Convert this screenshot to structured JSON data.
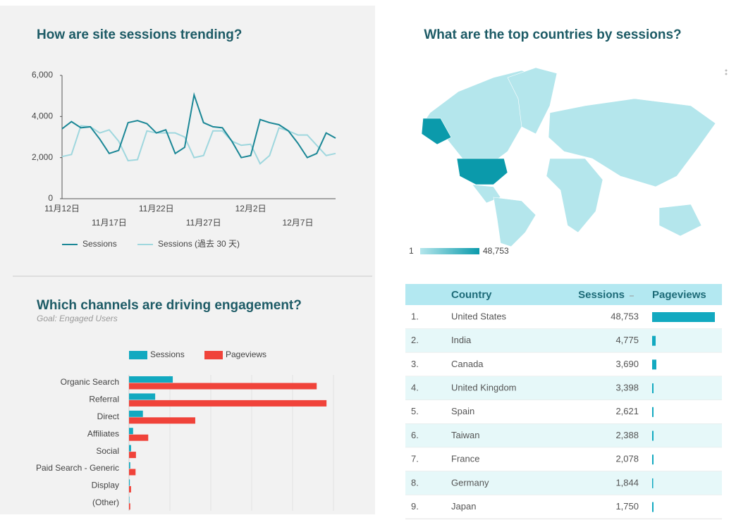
{
  "chart_data": [
    {
      "type": "line",
      "title": "How are site sessions trending?",
      "categories": [
        "11月12日",
        null,
        null,
        null,
        null,
        "11月17日",
        null,
        null,
        null,
        null,
        "11月22日",
        null,
        null,
        null,
        null,
        "11月27日",
        null,
        null,
        null,
        null,
        "12月2日",
        null,
        null,
        null,
        null,
        "12月7日",
        null,
        null,
        null,
        null
      ],
      "series": [
        {
          "name": "Sessions",
          "color": "#1b8796",
          "values": [
            3400,
            3750,
            3450,
            3500,
            2900,
            2200,
            2350,
            3700,
            3800,
            3650,
            3200,
            3350,
            2200,
            2500,
            5050,
            3700,
            3500,
            3450,
            2800,
            2000,
            2100,
            3850,
            3700,
            3600,
            3300,
            2700,
            2000,
            2200,
            3200,
            2950
          ]
        },
        {
          "name": "Sessions (過去 30 天)",
          "color": "#9fd7de",
          "values": [
            2050,
            2150,
            3550,
            3500,
            3200,
            3350,
            2800,
            1850,
            1900,
            3300,
            3200,
            3200,
            3200,
            3000,
            2000,
            2100,
            3300,
            3300,
            2800,
            2600,
            2650,
            1700,
            2100,
            3450,
            3300,
            3100,
            3100,
            2600,
            2100,
            2200
          ]
        }
      ],
      "ylim": [
        0,
        6000
      ],
      "yticks": [
        0,
        {
          "value": 2000,
          "label": "2,000"
        },
        {
          "value": 4000,
          "label": "4,000"
        },
        {
          "value": 6000,
          "label": "6,000"
        }
      ]
    },
    {
      "type": "hbar",
      "title": "Which channels are driving engagement?",
      "subtitle": "Goal: Engaged Users",
      "categories": [
        "Organic Search",
        "Referral",
        "Direct",
        "Affiliates",
        "Social",
        "Paid Search - Generic",
        "Display",
        "(Other)"
      ],
      "series": [
        {
          "name": "Sessions",
          "color": "#12a9c0",
          "values": [
            1.07,
            0.64,
            0.34,
            0.1,
            0.05,
            0.03,
            0.02,
            0.01
          ]
        },
        {
          "name": "Pageviews",
          "color": "#f0433a",
          "values": [
            4.59,
            4.83,
            1.62,
            0.47,
            0.17,
            0.16,
            0.05,
            0.03
          ]
        }
      ],
      "xlim": [
        0,
        6
      ],
      "grid": true
    },
    {
      "type": "map",
      "title": "What are the top countries by sessions?",
      "color_min": 1,
      "color_max": {
        "value": 48753,
        "label": "48,753"
      },
      "colors": [
        "#b4e6ec",
        "#0b9aab"
      ]
    }
  ],
  "table": {
    "columns": [
      "Country",
      "Sessions",
      "Pageviews"
    ],
    "rows": [
      {
        "rank": "1.",
        "country": "United States",
        "sessions": "48,753"
      },
      {
        "rank": "2.",
        "country": "India",
        "sessions": "4,775"
      },
      {
        "rank": "3.",
        "country": "Canada",
        "sessions": "3,690"
      },
      {
        "rank": "4.",
        "country": "United Kingdom",
        "sessions": "3,398"
      },
      {
        "rank": "5.",
        "country": "Spain",
        "sessions": "2,621"
      },
      {
        "rank": "6.",
        "country": "Taiwan",
        "sessions": "2,388"
      },
      {
        "rank": "7.",
        "country": "France",
        "sessions": "2,078"
      },
      {
        "rank": "8.",
        "country": "Germany",
        "sessions": "1,844"
      },
      {
        "rank": "9.",
        "country": "Japan",
        "sessions": "1,750"
      }
    ],
    "pageviews": [
      89,
      5,
      6,
      2,
      2,
      2,
      2,
      1,
      2
    ],
    "bar_color": "#12a9c0"
  }
}
